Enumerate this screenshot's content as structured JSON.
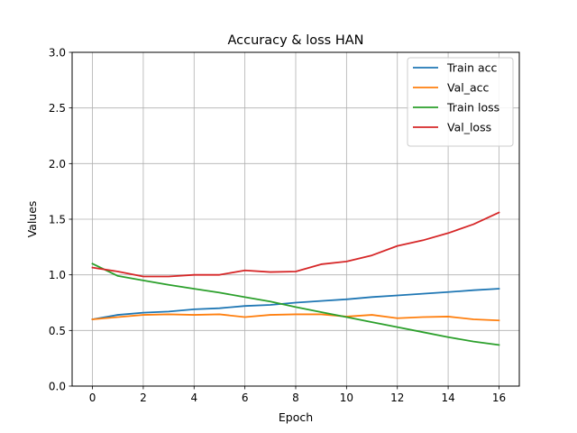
{
  "chart_data": {
    "type": "line",
    "title": "Accuracy & loss HAN",
    "xlabel": "Epoch",
    "ylabel": "Values",
    "xlim": [
      -0.8,
      16.8
    ],
    "ylim": [
      0,
      3.0
    ],
    "xticks": [
      0,
      2,
      4,
      6,
      8,
      10,
      12,
      14,
      16
    ],
    "yticks": [
      0.0,
      0.5,
      1.0,
      1.5,
      2.0,
      2.5,
      3.0
    ],
    "ytick_labels": [
      "0.0",
      "0.5",
      "1.0",
      "1.5",
      "2.0",
      "2.5",
      "3.0"
    ],
    "grid": true,
    "legend_position": "top-right",
    "x": [
      0,
      1,
      2,
      3,
      4,
      5,
      6,
      7,
      8,
      9,
      10,
      11,
      12,
      13,
      14,
      15,
      16
    ],
    "series": [
      {
        "name": "Train acc",
        "color": "#1f77b4",
        "values": [
          0.6,
          0.64,
          0.66,
          0.67,
          0.69,
          0.7,
          0.72,
          0.73,
          0.75,
          0.765,
          0.78,
          0.8,
          0.815,
          0.83,
          0.845,
          0.862,
          0.875
        ]
      },
      {
        "name": "Val_acc",
        "color": "#ff7f0e",
        "values": [
          0.6,
          0.62,
          0.64,
          0.645,
          0.64,
          0.645,
          0.62,
          0.64,
          0.645,
          0.645,
          0.625,
          0.64,
          0.61,
          0.62,
          0.625,
          0.6,
          0.59
        ]
      },
      {
        "name": "Train loss",
        "color": "#2ca02c",
        "values": [
          1.1,
          0.99,
          0.95,
          0.91,
          0.875,
          0.84,
          0.8,
          0.76,
          0.71,
          0.665,
          0.62,
          0.575,
          0.53,
          0.485,
          0.44,
          0.4,
          0.37
        ]
      },
      {
        "name": "Val_loss",
        "color": "#d62728",
        "values": [
          1.065,
          1.03,
          0.985,
          0.985,
          1.0,
          1.0,
          1.04,
          1.025,
          1.03,
          1.095,
          1.12,
          1.175,
          1.26,
          1.31,
          1.375,
          1.455,
          1.56
        ]
      }
    ]
  }
}
